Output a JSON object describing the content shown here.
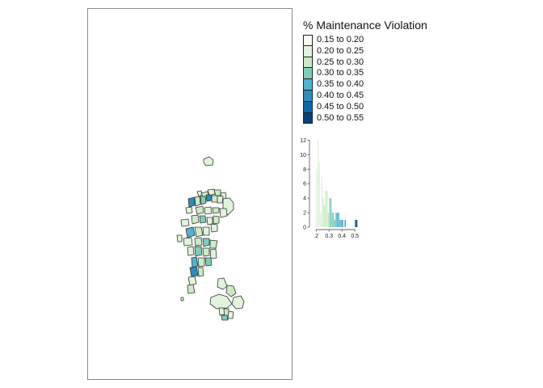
{
  "legend": {
    "title": "% Maintenance Violation",
    "classes": [
      {
        "label": "0.15 to 0.20",
        "color": "#f7fcf0"
      },
      {
        "label": "0.20 to 0.25",
        "color": "#e0f3db"
      },
      {
        "label": "0.25 to 0.30",
        "color": "#ccebc5"
      },
      {
        "label": "0.30 to 0.35",
        "color": "#7fcdbb"
      },
      {
        "label": "0.35 to 0.40",
        "color": "#4eb3d3"
      },
      {
        "label": "0.40 to 0.45",
        "color": "#2b8cbe"
      },
      {
        "label": "0.45 to 0.50",
        "color": "#0868ac"
      },
      {
        "label": "0.50 to 0.55",
        "color": "#084081"
      }
    ]
  },
  "histogram": {
    "x_ticks": [
      {
        "value": 0.2,
        "label": ".2"
      },
      {
        "value": 0.3,
        "label": "0.3"
      },
      {
        "value": 0.4,
        "label": "0.4"
      },
      {
        "value": 0.5,
        "label": "0.5"
      }
    ],
    "y_ticks": [
      0,
      2,
      4,
      6,
      8,
      10,
      12
    ],
    "x_range": [
      0.18,
      0.53
    ],
    "y_range": [
      0,
      12.6
    ],
    "bars": [
      {
        "x": 0.195,
        "count": 6
      },
      {
        "x": 0.205,
        "count": 8
      },
      {
        "x": 0.215,
        "count": 12
      },
      {
        "x": 0.225,
        "count": 9
      },
      {
        "x": 0.235,
        "count": 2
      },
      {
        "x": 0.245,
        "count": 7
      },
      {
        "x": 0.255,
        "count": 4
      },
      {
        "x": 0.265,
        "count": 3
      },
      {
        "x": 0.275,
        "count": 5
      },
      {
        "x": 0.285,
        "count": 5
      },
      {
        "x": 0.295,
        "count": 2
      },
      {
        "x": 0.305,
        "count": 4
      },
      {
        "x": 0.315,
        "count": 4
      },
      {
        "x": 0.325,
        "count": 2
      },
      {
        "x": 0.335,
        "count": 2
      },
      {
        "x": 0.345,
        "count": 1
      },
      {
        "x": 0.355,
        "count": 2
      },
      {
        "x": 0.365,
        "count": 2
      },
      {
        "x": 0.375,
        "count": 2
      },
      {
        "x": 0.385,
        "count": 1
      },
      {
        "x": 0.395,
        "count": 1
      },
      {
        "x": 0.405,
        "count": 1
      },
      {
        "x": 0.425,
        "count": 1
      },
      {
        "x": 0.505,
        "count": 1
      },
      {
        "x": 0.515,
        "count": 1
      }
    ]
  },
  "map": {
    "colors": {
      "stroke": "#333333",
      "light": "#ccebc5",
      "pale": "#e0f3db",
      "teal": "#7fcdbb",
      "blue": "#4eb3d3",
      "dark": "#2b8cbe"
    }
  }
}
